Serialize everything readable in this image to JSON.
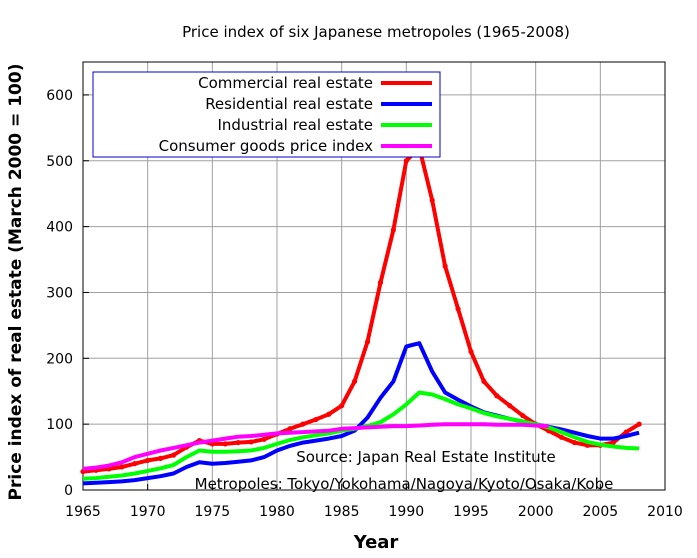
{
  "chart_data": {
    "type": "line",
    "title": "Price index of six Japanese metropoles (1965-2008)",
    "xlabel": "Year",
    "ylabel": "Price index of real estate (March 2000 = 100)",
    "xlim": [
      1965,
      2010
    ],
    "ylim": [
      0,
      650
    ],
    "xticks": [
      1965,
      1970,
      1975,
      1980,
      1985,
      1990,
      1995,
      2000,
      2005,
      2010
    ],
    "yticks": [
      0,
      100,
      200,
      300,
      400,
      500,
      600
    ],
    "grid": true,
    "legend_position": "top-left",
    "annotations": [
      "Source: Japan Real Estate Institute",
      "Metropoles: Tokyo/Yokohama/Nagoya/Kyoto/Osaka/Kobe"
    ],
    "series": [
      {
        "name": "Commercial real estate",
        "color": "#ff0000",
        "points": [
          [
            1965,
            28
          ],
          [
            1966,
            30
          ],
          [
            1967,
            32
          ],
          [
            1968,
            35
          ],
          [
            1969,
            40
          ],
          [
            1970,
            45
          ],
          [
            1971,
            48
          ],
          [
            1972,
            53
          ],
          [
            1973,
            65
          ],
          [
            1974,
            75
          ],
          [
            1975,
            70
          ],
          [
            1976,
            70
          ],
          [
            1977,
            72
          ],
          [
            1978,
            73
          ],
          [
            1979,
            77
          ],
          [
            1980,
            85
          ],
          [
            1981,
            93
          ],
          [
            1982,
            100
          ],
          [
            1983,
            107
          ],
          [
            1984,
            115
          ],
          [
            1985,
            128
          ],
          [
            1986,
            165
          ],
          [
            1987,
            225
          ],
          [
            1988,
            315
          ],
          [
            1989,
            395
          ],
          [
            1990,
            500
          ],
          [
            1991,
            520
          ],
          [
            1992,
            440
          ],
          [
            1993,
            340
          ],
          [
            1994,
            275
          ],
          [
            1995,
            210
          ],
          [
            1996,
            165
          ],
          [
            1997,
            143
          ],
          [
            1998,
            128
          ],
          [
            1999,
            113
          ],
          [
            2000,
            100
          ],
          [
            2001,
            90
          ],
          [
            2002,
            80
          ],
          [
            2003,
            72
          ],
          [
            2004,
            68
          ],
          [
            2005,
            68
          ],
          [
            2006,
            72
          ],
          [
            2007,
            88
          ],
          [
            2008,
            100
          ]
        ]
      },
      {
        "name": "Residential real estate",
        "color": "#0000ff",
        "points": [
          [
            1965,
            10
          ],
          [
            1966,
            11
          ],
          [
            1967,
            12
          ],
          [
            1968,
            13
          ],
          [
            1969,
            15
          ],
          [
            1970,
            18
          ],
          [
            1971,
            21
          ],
          [
            1972,
            25
          ],
          [
            1973,
            35
          ],
          [
            1974,
            42
          ],
          [
            1975,
            40
          ],
          [
            1976,
            41
          ],
          [
            1977,
            43
          ],
          [
            1978,
            45
          ],
          [
            1979,
            50
          ],
          [
            1980,
            60
          ],
          [
            1981,
            67
          ],
          [
            1982,
            72
          ],
          [
            1983,
            75
          ],
          [
            1984,
            78
          ],
          [
            1985,
            82
          ],
          [
            1986,
            90
          ],
          [
            1987,
            110
          ],
          [
            1988,
            140
          ],
          [
            1989,
            165
          ],
          [
            1990,
            218
          ],
          [
            1991,
            223
          ],
          [
            1992,
            180
          ],
          [
            1993,
            148
          ],
          [
            1994,
            137
          ],
          [
            1995,
            127
          ],
          [
            1996,
            118
          ],
          [
            1997,
            113
          ],
          [
            1998,
            108
          ],
          [
            1999,
            104
          ],
          [
            2000,
            100
          ],
          [
            2001,
            96
          ],
          [
            2002,
            92
          ],
          [
            2003,
            87
          ],
          [
            2004,
            82
          ],
          [
            2005,
            78
          ],
          [
            2006,
            78
          ],
          [
            2007,
            82
          ],
          [
            2008,
            87
          ]
        ]
      },
      {
        "name": "Industrial real estate",
        "color": "#00ff00",
        "points": [
          [
            1965,
            17
          ],
          [
            1966,
            18
          ],
          [
            1967,
            20
          ],
          [
            1968,
            22
          ],
          [
            1969,
            25
          ],
          [
            1970,
            29
          ],
          [
            1971,
            33
          ],
          [
            1972,
            38
          ],
          [
            1973,
            50
          ],
          [
            1974,
            60
          ],
          [
            1975,
            58
          ],
          [
            1976,
            58
          ],
          [
            1977,
            59
          ],
          [
            1978,
            60
          ],
          [
            1979,
            64
          ],
          [
            1980,
            70
          ],
          [
            1981,
            76
          ],
          [
            1982,
            80
          ],
          [
            1983,
            83
          ],
          [
            1984,
            86
          ],
          [
            1985,
            90
          ],
          [
            1986,
            93
          ],
          [
            1987,
            97
          ],
          [
            1988,
            103
          ],
          [
            1989,
            115
          ],
          [
            1990,
            130
          ],
          [
            1991,
            148
          ],
          [
            1992,
            145
          ],
          [
            1993,
            138
          ],
          [
            1994,
            130
          ],
          [
            1995,
            124
          ],
          [
            1996,
            117
          ],
          [
            1997,
            112
          ],
          [
            1998,
            108
          ],
          [
            1999,
            104
          ],
          [
            2000,
            100
          ],
          [
            2001,
            95
          ],
          [
            2002,
            88
          ],
          [
            2003,
            80
          ],
          [
            2004,
            73
          ],
          [
            2005,
            69
          ],
          [
            2006,
            66
          ],
          [
            2007,
            64
          ],
          [
            2008,
            63
          ]
        ]
      },
      {
        "name": "Consumer goods price index",
        "color": "#ff00ff",
        "points": [
          [
            1965,
            32
          ],
          [
            1966,
            34
          ],
          [
            1967,
            37
          ],
          [
            1968,
            42
          ],
          [
            1969,
            50
          ],
          [
            1970,
            55
          ],
          [
            1971,
            60
          ],
          [
            1972,
            64
          ],
          [
            1973,
            68
          ],
          [
            1974,
            72
          ],
          [
            1975,
            75
          ],
          [
            1976,
            78
          ],
          [
            1977,
            81
          ],
          [
            1978,
            82
          ],
          [
            1979,
            84
          ],
          [
            1980,
            86
          ],
          [
            1981,
            87
          ],
          [
            1982,
            88
          ],
          [
            1983,
            89
          ],
          [
            1984,
            90
          ],
          [
            1985,
            93
          ],
          [
            1986,
            94
          ],
          [
            1987,
            95
          ],
          [
            1988,
            96
          ],
          [
            1989,
            97
          ],
          [
            1990,
            97
          ],
          [
            1991,
            98
          ],
          [
            1992,
            99
          ],
          [
            1993,
            100
          ],
          [
            1994,
            100
          ],
          [
            1995,
            100
          ],
          [
            1996,
            100
          ],
          [
            1997,
            99
          ],
          [
            1998,
            99
          ],
          [
            1999,
            99
          ],
          [
            2000,
            98
          ],
          [
            2001,
            97
          ]
        ]
      }
    ]
  }
}
